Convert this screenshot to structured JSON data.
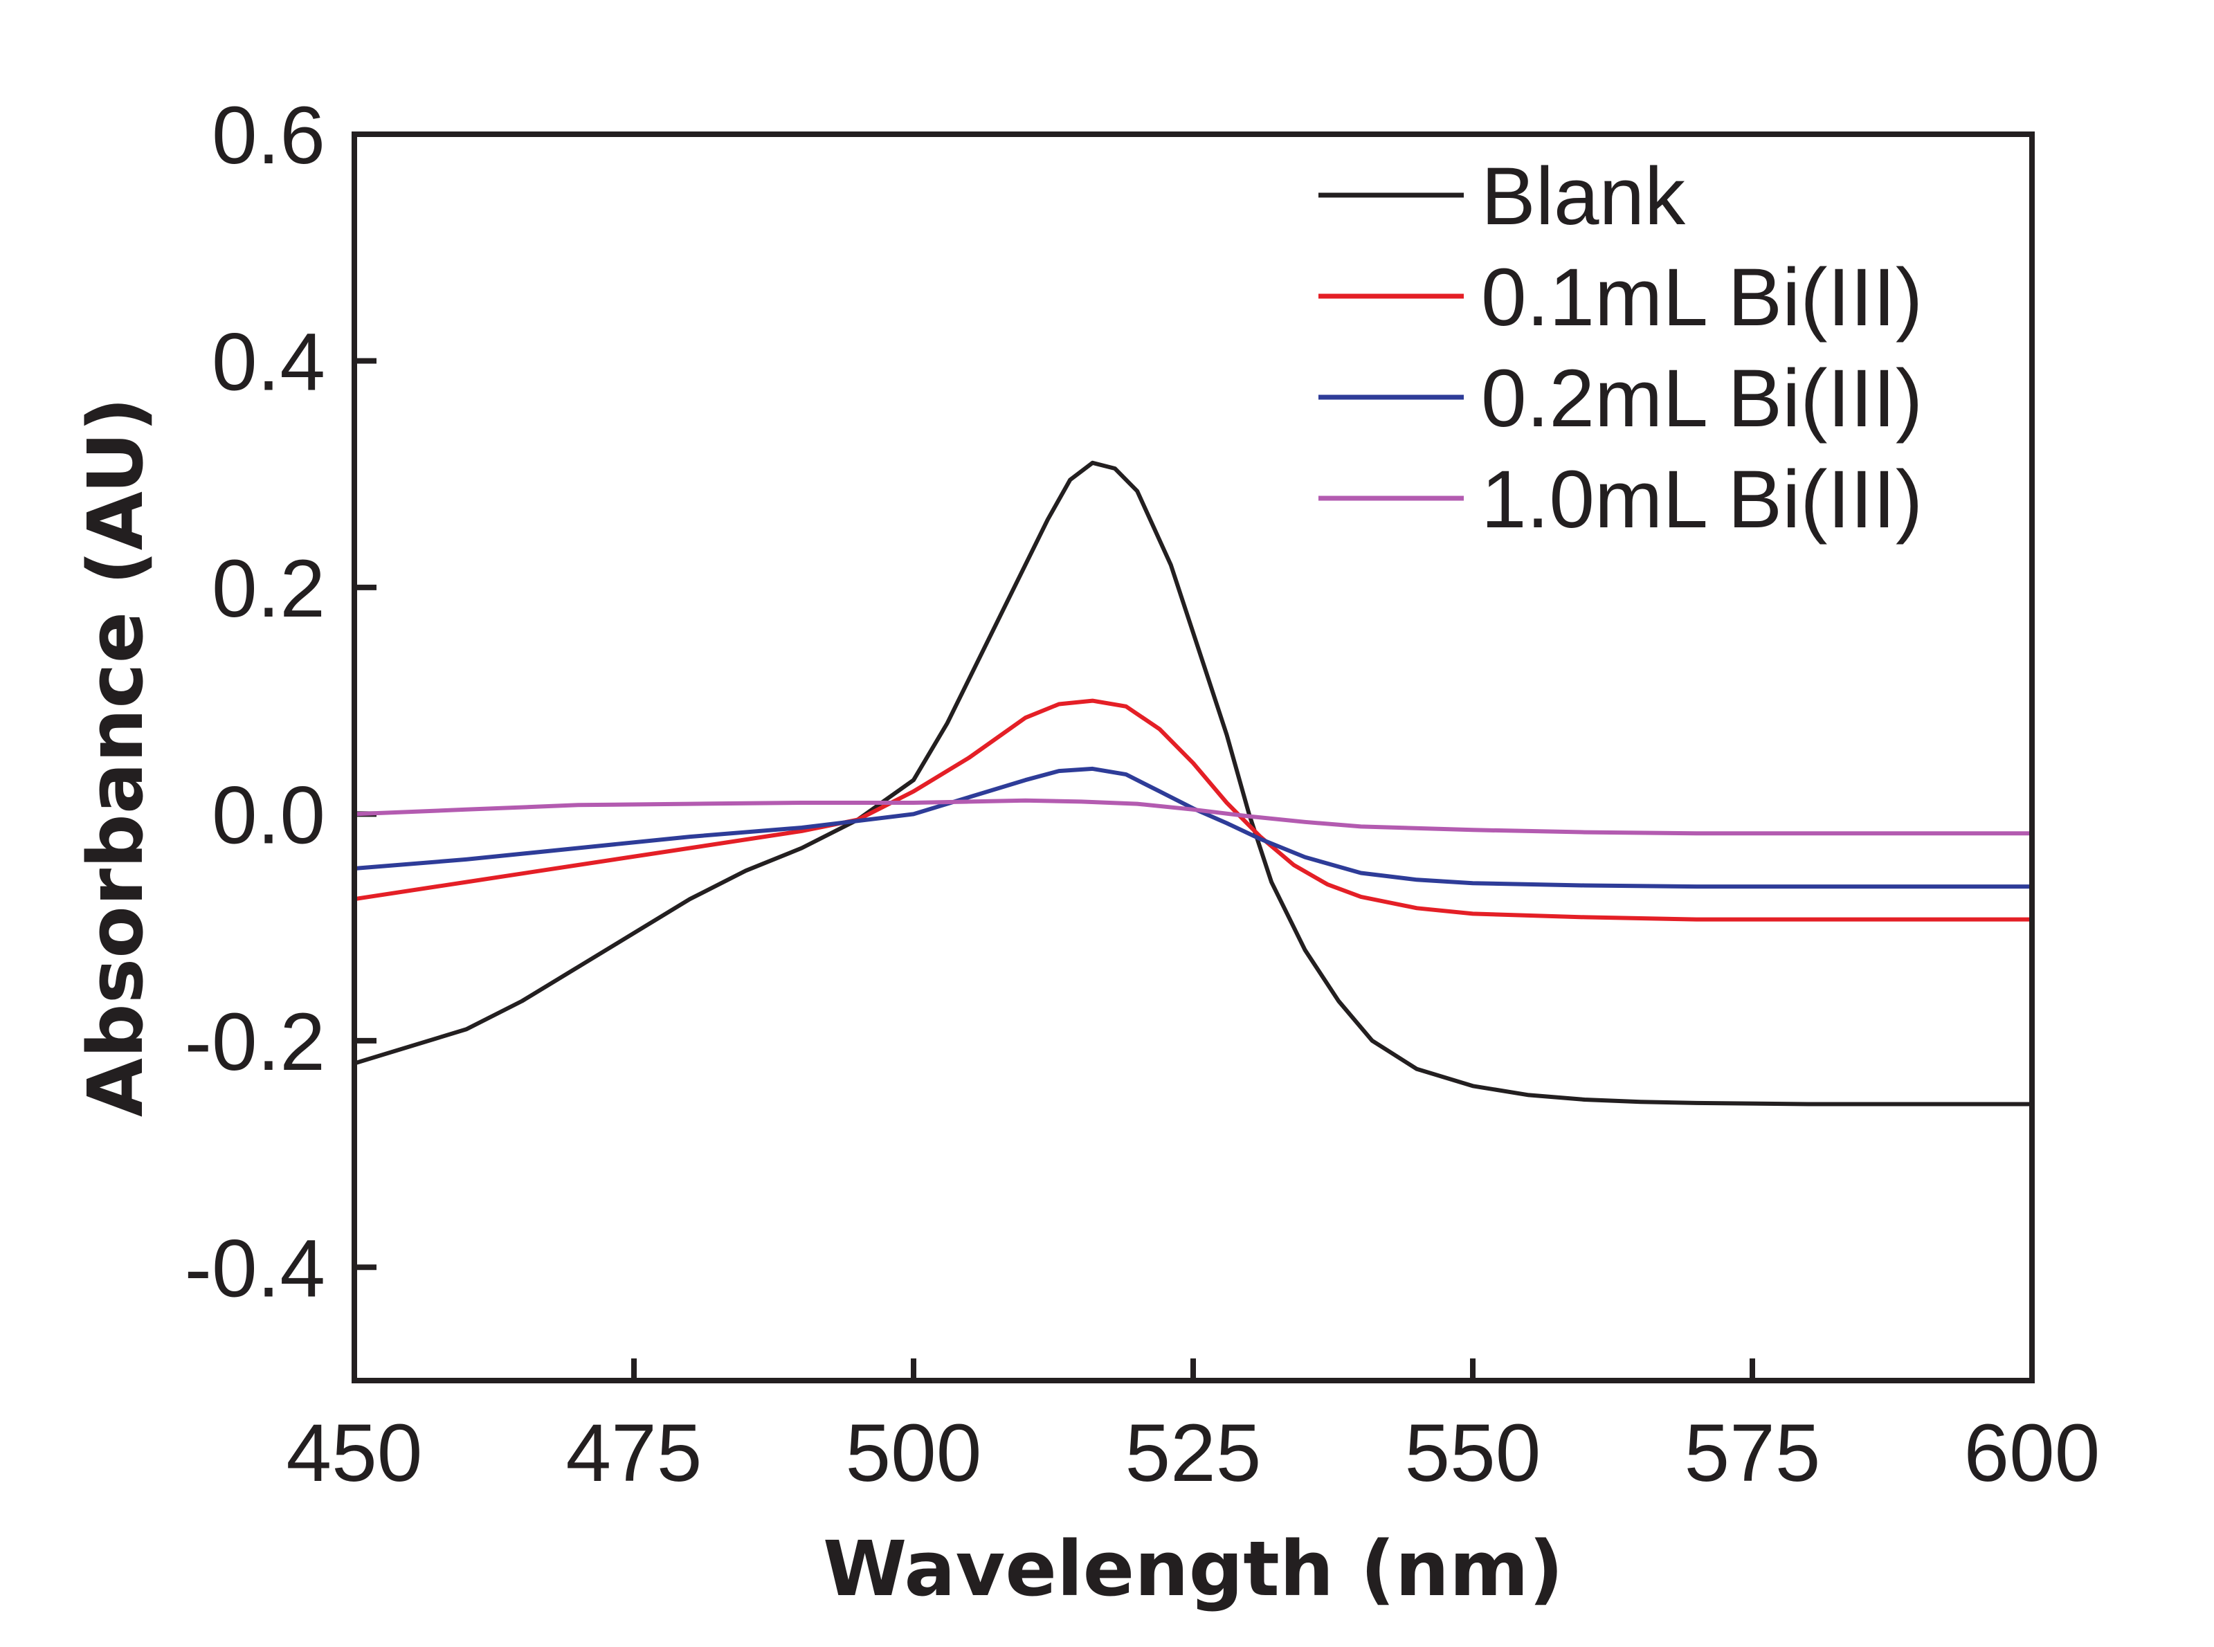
{
  "chart_data": {
    "type": "line",
    "title": "",
    "xlabel": "Wavelength (nm)",
    "ylabel": "Absorbance (AU)",
    "xlim": [
      450,
      600
    ],
    "ylim": [
      -0.5,
      0.6
    ],
    "xticks": [
      450,
      475,
      500,
      525,
      550,
      575,
      600
    ],
    "xtick_labels": [
      "450",
      "475",
      "500",
      "525",
      "550",
      "575",
      "600"
    ],
    "yticks": [
      0.6,
      0.4,
      0.2,
      0.0,
      -0.2,
      -0.4
    ],
    "ytick_labels": [
      "0.6",
      "0.4",
      "0.2",
      "0.0",
      "-0.2",
      "-0.4"
    ],
    "grid": false,
    "legend_position": "top-right",
    "series": [
      {
        "name": "Blank",
        "color": "#231f20",
        "x": [
          450,
          455,
          460,
          465,
          470,
          475,
          480,
          485,
          490,
          495,
          500,
          503,
          506,
          509,
          512,
          514,
          516,
          518,
          520,
          523,
          526,
          528,
          530,
          532,
          535,
          538,
          541,
          545,
          550,
          555,
          560,
          565,
          570,
          580,
          590,
          600
        ],
        "y": [
          -0.22,
          -0.205,
          -0.19,
          -0.165,
          -0.135,
          -0.105,
          -0.075,
          -0.05,
          -0.03,
          -0.005,
          0.03,
          0.08,
          0.14,
          0.2,
          0.26,
          0.295,
          0.31,
          0.305,
          0.285,
          0.22,
          0.13,
          0.07,
          0.0,
          -0.06,
          -0.12,
          -0.165,
          -0.2,
          -0.225,
          -0.24,
          -0.248,
          -0.252,
          -0.254,
          -0.255,
          -0.256,
          -0.256,
          -0.256
        ]
      },
      {
        "name": "0.1mL Bi(III)",
        "color": "#e41f26",
        "x": [
          450,
          460,
          470,
          480,
          490,
          495,
          500,
          505,
          510,
          513,
          516,
          519,
          522,
          525,
          528,
          531,
          534,
          537,
          540,
          545,
          550,
          560,
          570,
          580,
          590,
          600
        ],
        "y": [
          -0.075,
          -0.06,
          -0.045,
          -0.03,
          -0.015,
          -0.005,
          0.02,
          0.05,
          0.085,
          0.097,
          0.1,
          0.095,
          0.075,
          0.045,
          0.01,
          -0.02,
          -0.045,
          -0.062,
          -0.073,
          -0.083,
          -0.088,
          -0.091,
          -0.093,
          -0.093,
          -0.093,
          -0.093
        ]
      },
      {
        "name": "0.2mL Bi(III)",
        "color": "#2e3c98",
        "x": [
          450,
          460,
          470,
          480,
          490,
          500,
          505,
          510,
          513,
          516,
          519,
          522,
          525,
          528,
          531,
          535,
          540,
          545,
          550,
          560,
          570,
          580,
          590,
          600
        ],
        "y": [
          -0.048,
          -0.04,
          -0.03,
          -0.02,
          -0.012,
          0.0,
          0.015,
          0.03,
          0.038,
          0.04,
          0.035,
          0.02,
          0.005,
          -0.008,
          -0.022,
          -0.038,
          -0.052,
          -0.058,
          -0.061,
          -0.063,
          -0.064,
          -0.064,
          -0.064,
          -0.064
        ]
      },
      {
        "name": "1.0mL Bi(III)",
        "color": "#b35bb0",
        "x": [
          450,
          460,
          470,
          480,
          490,
          500,
          505,
          510,
          515,
          520,
          525,
          530,
          535,
          540,
          550,
          560,
          570,
          580,
          590,
          600
        ],
        "y": [
          0.0,
          0.004,
          0.008,
          0.009,
          0.01,
          0.01,
          0.011,
          0.012,
          0.011,
          0.009,
          0.004,
          -0.002,
          -0.007,
          -0.011,
          -0.014,
          -0.016,
          -0.017,
          -0.017,
          -0.017,
          -0.017
        ]
      }
    ]
  }
}
